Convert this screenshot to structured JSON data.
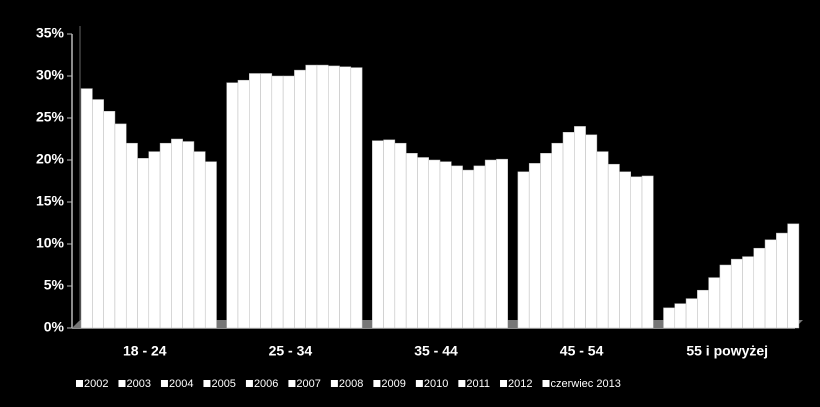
{
  "chart_data": {
    "type": "bar",
    "categories": [
      "18 - 24",
      "25 - 34",
      "35 - 44",
      "45 - 54",
      "55 i powyżej"
    ],
    "series": [
      {
        "name": "2002",
        "color": "#ffffff",
        "values": [
          28.5,
          29.2,
          22.3,
          18.6,
          2.4
        ]
      },
      {
        "name": "2003",
        "color": "#ffffff",
        "values": [
          27.2,
          29.5,
          22.4,
          19.6,
          2.9
        ]
      },
      {
        "name": "2004",
        "color": "#ffffff",
        "values": [
          25.8,
          30.3,
          22.0,
          20.8,
          3.5
        ]
      },
      {
        "name": "2005",
        "color": "#ffffff",
        "values": [
          24.3,
          30.3,
          20.8,
          22.0,
          4.5
        ]
      },
      {
        "name": "2006",
        "color": "#ffffff",
        "values": [
          22.0,
          30.0,
          20.3,
          23.3,
          6.0
        ]
      },
      {
        "name": "2007",
        "color": "#ffffff",
        "values": [
          20.2,
          30.0,
          20.0,
          24.0,
          7.5
        ]
      },
      {
        "name": "2008",
        "color": "#ffffff",
        "values": [
          21.0,
          30.7,
          19.8,
          23.0,
          8.2
        ]
      },
      {
        "name": "2009",
        "color": "#ffffff",
        "values": [
          22.0,
          31.3,
          19.3,
          21.0,
          8.5
        ]
      },
      {
        "name": "2010",
        "color": "#ffffff",
        "values": [
          22.5,
          31.3,
          18.8,
          19.5,
          9.5
        ]
      },
      {
        "name": "2011",
        "color": "#ffffff",
        "values": [
          22.2,
          31.2,
          19.3,
          18.6,
          10.5
        ]
      },
      {
        "name": "2012",
        "color": "#ffffff",
        "values": [
          21.0,
          31.1,
          20.0,
          18.0,
          11.3
        ]
      },
      {
        "name": "czerwiec 2013",
        "color": "#ffffff",
        "values": [
          19.8,
          31.0,
          20.1,
          18.1,
          12.4
        ]
      }
    ],
    "ylim": [
      0,
      35
    ],
    "yticks": [
      {
        "value": 0,
        "label": "0%"
      },
      {
        "value": 5,
        "label": "5%"
      },
      {
        "value": 10,
        "label": "10%"
      },
      {
        "value": 15,
        "label": "15%"
      },
      {
        "value": 20,
        "label": "20%"
      },
      {
        "value": 25,
        "label": "25%"
      },
      {
        "value": 30,
        "label": "30%"
      },
      {
        "value": 35,
        "label": "35%"
      }
    ],
    "grid": false,
    "legend": "bottom"
  }
}
